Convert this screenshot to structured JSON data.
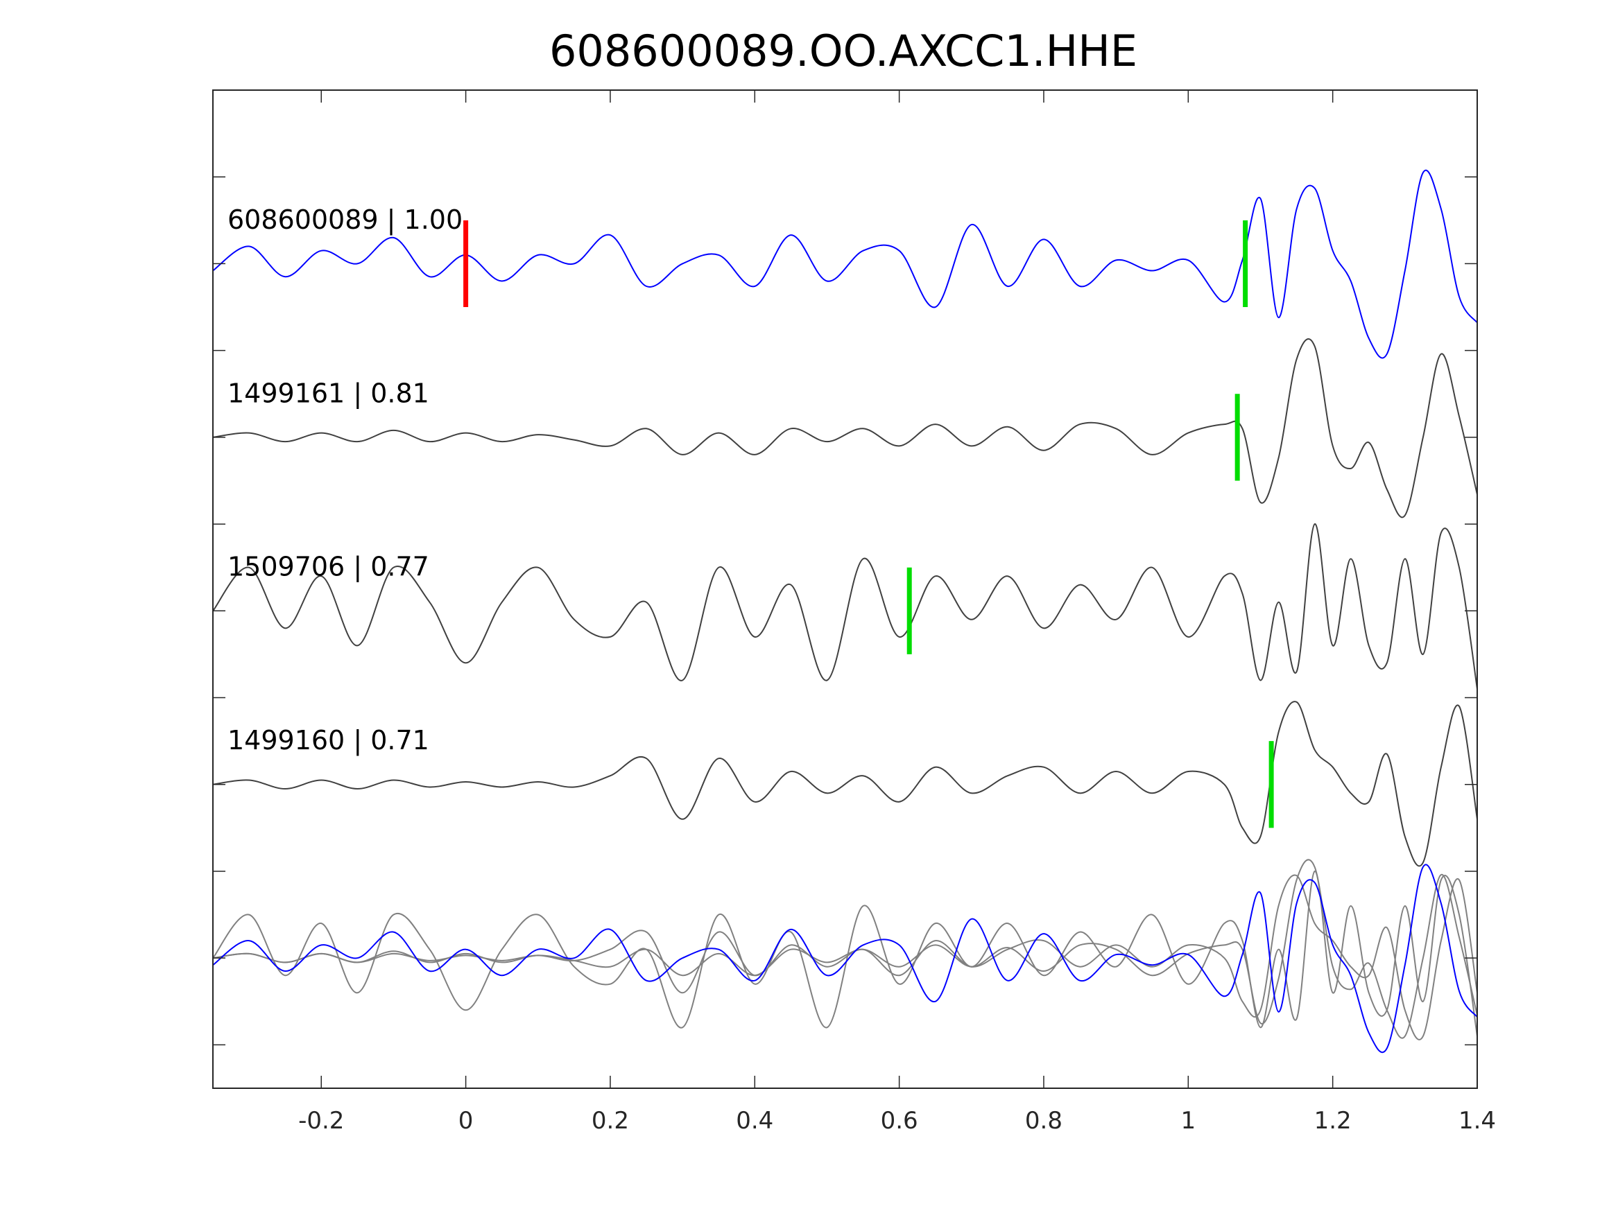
{
  "chart_data": {
    "type": "line",
    "title": "608600089.OO.AXCC1.HHE",
    "xlabel": "",
    "ylabel": "",
    "xlim": [
      -0.35,
      1.4
    ],
    "ylim": [
      0,
      11.5
    ],
    "xticks": [
      -0.2,
      0,
      0.2,
      0.4,
      0.6,
      0.8,
      1,
      1.2,
      1.4
    ],
    "xtick_labels": [
      "-0.2",
      "0",
      "0.2",
      "0.4",
      "0.6",
      "0.8",
      "1",
      "1.2",
      "1.4"
    ],
    "yticks": [
      0.5,
      1.5,
      2.5,
      3.5,
      4.5,
      5.5,
      6.5,
      7.5,
      8.5,
      9.5,
      10.5
    ],
    "grid": false,
    "x": [
      -0.35,
      -0.3,
      -0.25,
      -0.2,
      -0.15,
      -0.1,
      -0.05,
      0,
      0.05,
      0.1,
      0.15,
      0.2,
      0.25,
      0.3,
      0.35,
      0.4,
      0.45,
      0.5,
      0.55,
      0.6,
      0.65,
      0.7,
      0.75,
      0.8,
      0.85,
      0.9,
      0.95,
      1.0,
      1.05,
      1.075,
      1.1,
      1.125,
      1.15,
      1.175,
      1.2,
      1.225,
      1.25,
      1.275,
      1.3,
      1.325,
      1.35,
      1.375,
      1.4
    ],
    "series": [
      {
        "name": "608600089",
        "label": "608600089 | 1.00",
        "correlation": 1.0,
        "offset": 9.5,
        "color": "#0000ff",
        "pick": 1.079,
        "reference_pick": 0.0,
        "values": [
          -0.08,
          0.2,
          -0.15,
          0.15,
          0,
          0.3,
          -0.15,
          0.1,
          -0.2,
          0.1,
          0,
          0.33,
          -0.26,
          0,
          0.1,
          -0.26,
          0.33,
          -0.2,
          0.15,
          0.15,
          -0.5,
          0.45,
          -0.26,
          0.28,
          -0.26,
          0.04,
          -0.08,
          0.04,
          -0.44,
          0.04,
          0.75,
          -0.62,
          0.63,
          0.87,
          0.15,
          -0.2,
          -0.86,
          -1.04,
          -0.08,
          1.05,
          0.63,
          -0.38,
          -0.68
        ]
      },
      {
        "name": "1499161",
        "label": "1499161 | 0.81",
        "correlation": 0.81,
        "offset": 7.5,
        "color": "#404040",
        "pick": 1.068,
        "values": [
          0,
          0.05,
          -0.05,
          0.05,
          -0.05,
          0.08,
          -0.05,
          0.05,
          -0.05,
          0.03,
          -0.03,
          -0.1,
          0.1,
          -0.2,
          0.05,
          -0.2,
          0.1,
          -0.05,
          0.1,
          -0.1,
          0.15,
          -0.1,
          0.12,
          -0.15,
          0.15,
          0.1,
          -0.2,
          0.05,
          0.15,
          0.1,
          -0.75,
          -0.24,
          0.9,
          1.05,
          -0.1,
          -0.36,
          -0.06,
          -0.6,
          -0.9,
          0,
          0.96,
          0.24,
          -0.66
        ]
      },
      {
        "name": "1509706",
        "label": "1509706 | 0.77",
        "correlation": 0.77,
        "offset": 5.5,
        "color": "#404040",
        "pick": 0.614,
        "values": [
          0,
          0.5,
          -0.2,
          0.4,
          -0.4,
          0.5,
          0.1,
          -0.6,
          0.1,
          0.5,
          -0.1,
          -0.3,
          0.1,
          -0.8,
          0.5,
          -0.3,
          0.3,
          -0.8,
          0.6,
          -0.3,
          0.4,
          -0.1,
          0.4,
          -0.2,
          0.3,
          -0.1,
          0.5,
          -0.3,
          0.4,
          0.2,
          -0.8,
          0.1,
          -0.7,
          1.0,
          -0.4,
          0.6,
          -0.4,
          -0.6,
          0.6,
          -0.5,
          0.9,
          0.5,
          -0.9
        ]
      },
      {
        "name": "1499160",
        "label": "1499160 | 0.71",
        "correlation": 0.71,
        "offset": 3.5,
        "color": "#404040",
        "pick": 1.115,
        "values": [
          0,
          0.05,
          -0.05,
          0.05,
          -0.05,
          0.05,
          -0.03,
          0.03,
          -0.03,
          0.03,
          -0.03,
          0.1,
          0.3,
          -0.4,
          0.3,
          -0.2,
          0.15,
          -0.1,
          0.1,
          -0.2,
          0.2,
          -0.1,
          0.1,
          0.2,
          -0.1,
          0.15,
          -0.1,
          0.15,
          0,
          -0.5,
          -0.6,
          0.6,
          0.95,
          0.4,
          0.2,
          -0.1,
          -0.2,
          0.35,
          -0.6,
          -0.9,
          0.2,
          0.9,
          -0.4
        ]
      }
    ],
    "overlay": {
      "offset": 1.5,
      "reference_color": "#0000ff",
      "other_color": "#808080"
    },
    "pick_colors": {
      "reference": "#ff0000",
      "aligned": "#00dd00"
    }
  }
}
